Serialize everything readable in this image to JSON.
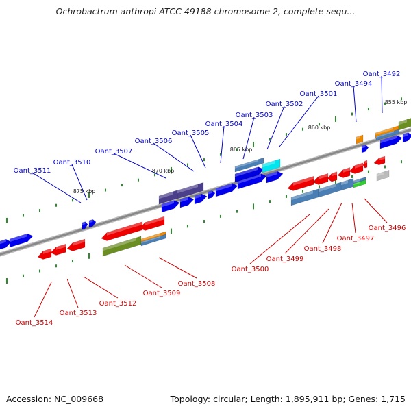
{
  "map": {
    "title": "Ochrobactrum anthropi ATCC 49188 chromosome 2, complete sequ...",
    "accession_label": "Accession: NC_009668",
    "summary": "Topology: circular; Length: 1,895,911 bp; Genes: 1,715"
  },
  "kbp_ticks": [
    "875 kbp",
    "870 kbp",
    "865 kbp",
    "860 kbp",
    "855 kbp"
  ],
  "colors": {
    "forward_label": "#0000cc",
    "reverse_label": "#cc0000",
    "forward_gene": "#0000ee",
    "reverse_gene": "#ee0000",
    "backbone": "#888888"
  },
  "forward_genes": [
    "Oant_3511",
    "Oant_3510",
    "Oant_3507",
    "Oant_3506",
    "Oant_3505",
    "Oant_3504",
    "Oant_3503",
    "Oant_3502",
    "Oant_3501",
    "Oant_3494",
    "Oant_3492"
  ],
  "reverse_genes": [
    "Oant_3514",
    "Oant_3513",
    "Oant_3512",
    "Oant_3509",
    "Oant_3508",
    "Oant_3500",
    "Oant_3499",
    "Oant_3498",
    "Oant_3497",
    "Oant_3496"
  ]
}
